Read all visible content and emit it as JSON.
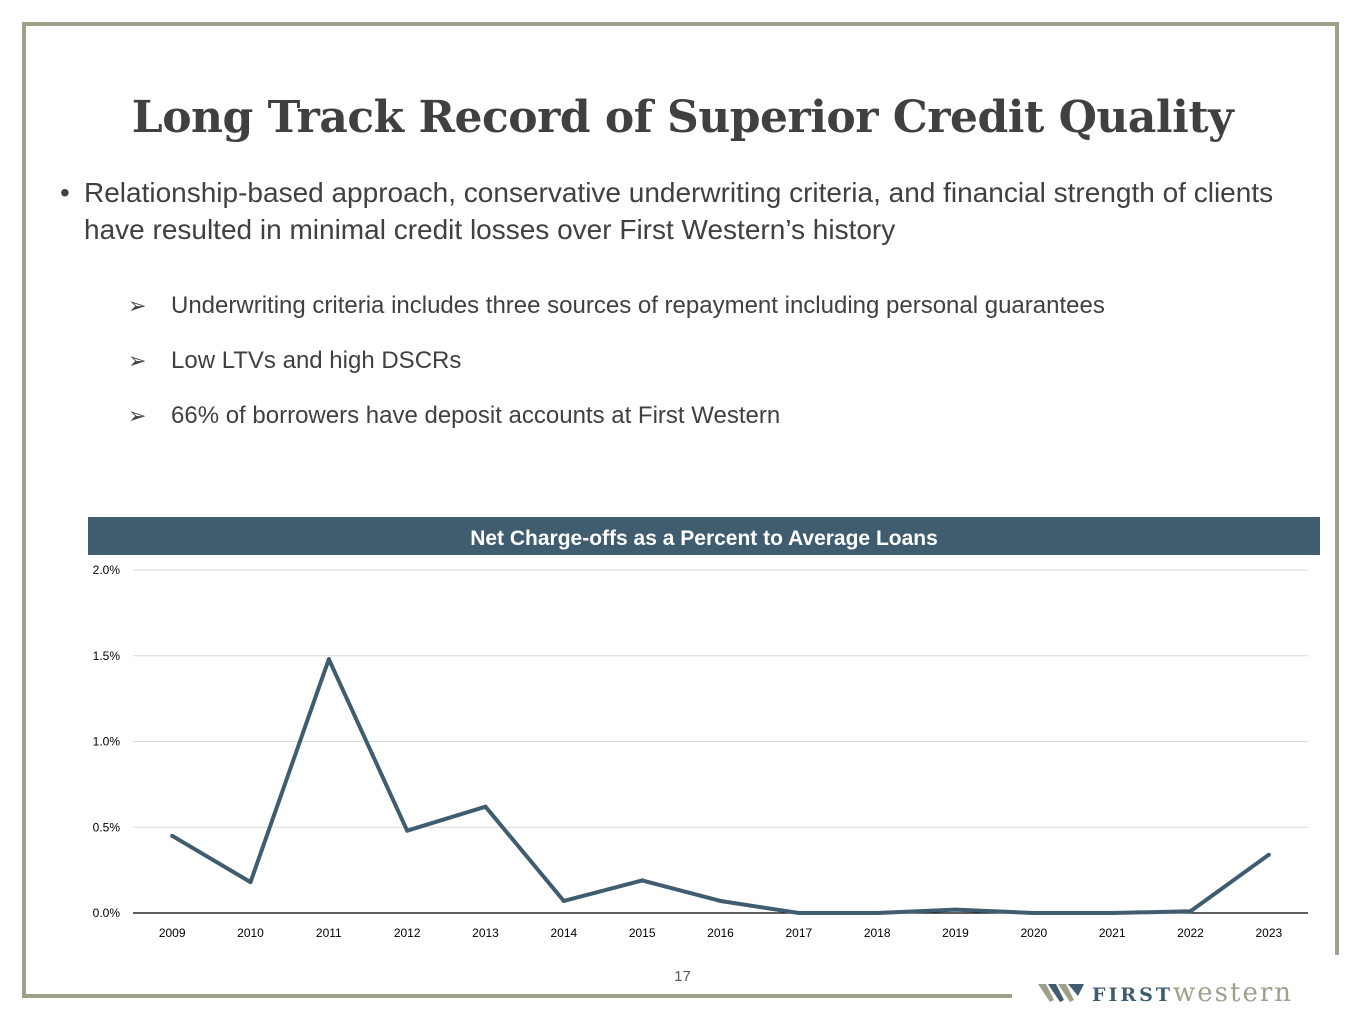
{
  "title": "Long Track Record of Superior Credit Quality",
  "bullet": "Relationship-based approach, conservative underwriting criteria, and financial strength of clients have resulted in minimal credit losses over First Western’s history",
  "sub_bullets": [
    "Underwriting criteria includes three sources of repayment including personal guarantees",
    "Low LTVs and high DSCRs",
    "66% of borrowers have deposit accounts at First Western"
  ],
  "page_number": "17",
  "logo": {
    "first": "FIRST",
    "western": "western",
    "icon": "w-chevron-logo-icon"
  },
  "colors": {
    "accent": "#3f5d6f",
    "frame": "#9fa08a"
  },
  "chart_data": {
    "type": "line",
    "title": "Net Charge-offs as a Percent to Average Loans",
    "categories": [
      "2009",
      "2010",
      "2011",
      "2012",
      "2013",
      "2014",
      "2015",
      "2016",
      "2017",
      "2018",
      "2019",
      "2020",
      "2021",
      "2022",
      "2023"
    ],
    "series": [
      {
        "values": [
          0.45,
          0.18,
          1.48,
          0.48,
          0.62,
          0.07,
          0.19,
          0.07,
          0.0,
          0.0,
          0.02,
          0.0,
          0.0,
          0.01,
          0.34
        ]
      }
    ],
    "ylim": [
      0,
      2.0
    ],
    "yticks": [
      "0.0%",
      "0.5%",
      "1.0%",
      "1.5%",
      "2.0%"
    ],
    "ytick_values": [
      0,
      0.5,
      1.0,
      1.5,
      2.0
    ],
    "grid": true,
    "line_color": "#3f5d6f"
  }
}
